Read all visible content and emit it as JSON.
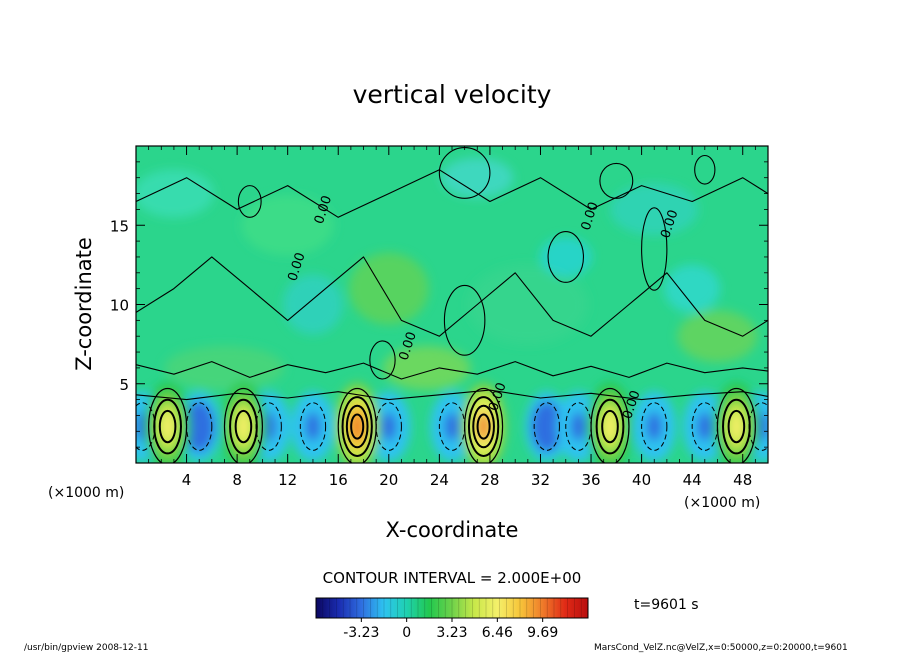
{
  "chart_data": {
    "type": "heatmap",
    "title": "vertical velocity",
    "xlabel": "X-coordinate",
    "ylabel": "Z-coordinate",
    "x_unit_left": "(×1000 m)",
    "x_unit_right": "(×1000 m)",
    "xlim": [
      0,
      50
    ],
    "ylim": [
      0,
      20
    ],
    "x_ticks": [
      4,
      8,
      12,
      16,
      20,
      24,
      28,
      32,
      36,
      40,
      44,
      48
    ],
    "x_tick_labels": [
      "4",
      "8",
      "12",
      "16",
      "20",
      "24",
      "28",
      "32",
      "36",
      "40",
      "44",
      "48"
    ],
    "y_ticks": [
      5,
      10,
      15
    ],
    "y_tick_labels": [
      "5",
      "10",
      "15"
    ],
    "contour_labels": [
      {
        "text": "0.00",
        "x": 13.0,
        "y": 12.3
      },
      {
        "text": "0.00",
        "x": 15.1,
        "y": 15.9
      },
      {
        "text": "0.00",
        "x": 21.8,
        "y": 7.3
      },
      {
        "text": "0.00",
        "x": 28.9,
        "y": 4.1
      },
      {
        "text": "0.00",
        "x": 36.2,
        "y": 15.5
      },
      {
        "text": "0.00",
        "x": 39.5,
        "y": 3.6
      },
      {
        "text": "0.00",
        "x": 42.5,
        "y": 15.0
      }
    ],
    "updrafts": [
      {
        "x": 2.5,
        "peak": 6.5
      },
      {
        "x": 8.5,
        "peak": 7.0
      },
      {
        "x": 17.5,
        "peak": 9.69
      },
      {
        "x": 27.5,
        "peak": 9.0
      },
      {
        "x": 37.5,
        "peak": 6.5
      },
      {
        "x": 47.5,
        "peak": 6.8
      }
    ],
    "downdrafts": [
      {
        "x": 0.5,
        "peak": -3.0
      },
      {
        "x": 5.0,
        "peak": -3.23
      },
      {
        "x": 10.5,
        "peak": -2.5
      },
      {
        "x": 14.0,
        "peak": -3.0
      },
      {
        "x": 20.0,
        "peak": -2.5
      },
      {
        "x": 25.0,
        "peak": -2.5
      },
      {
        "x": 32.5,
        "peak": -3.23
      },
      {
        "x": 35.0,
        "peak": -2.5
      },
      {
        "x": 41.0,
        "peak": -2.5
      },
      {
        "x": 45.0,
        "peak": -3.0
      },
      {
        "x": 49.5,
        "peak": -2.5
      }
    ],
    "contour_interval_label": "CONTOUR INTERVAL = 2.000E+00",
    "colorbar": {
      "min": -6.46,
      "max": 12.92,
      "tick_values": [
        -3.23,
        0,
        3.23,
        6.46,
        9.69
      ],
      "tick_labels": [
        "-3.23",
        "0",
        "3.23",
        "6.46",
        "9.69"
      ],
      "colors": [
        "#0b0760",
        "#1a2cb0",
        "#2f6ee0",
        "#2ec3f0",
        "#1fd1b0",
        "#22c84f",
        "#6fd24a",
        "#c9e84a",
        "#f4f06a",
        "#f7c53a",
        "#ef7b2a",
        "#e02a16",
        "#b80e0e"
      ]
    },
    "time_label": "t=9601 s"
  },
  "footer": {
    "left": "/usr/bin/gpview   2008-12-11",
    "right": "MarsCond_VelZ.nc@VelZ,x=0:50000,z=0:20000,t=9601"
  }
}
